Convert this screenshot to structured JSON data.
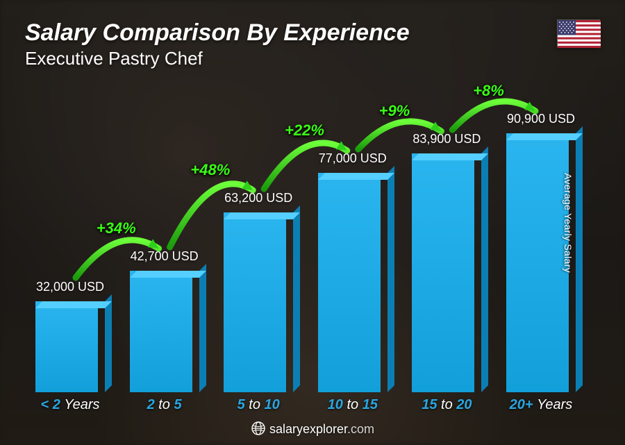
{
  "header": {
    "title": "Salary Comparison By Experience",
    "subtitle": "Executive Pastry Chef",
    "flag_country": "United States"
  },
  "yaxis_label": "Average Yearly Salary",
  "footer_site": "salaryexplorer",
  "footer_tld": ".com",
  "chart": {
    "type": "bar",
    "currency": "USD",
    "max_value": 95000,
    "bar_top_color": "#55cfff",
    "bar_front_top_color": "#2ab5ef",
    "bar_front_color": "#129fda",
    "bar_side_color": "#0b7fb4",
    "pct_text_color": "#39ff14",
    "arc_color": "#2fce1a",
    "background_colors": [
      "#353029",
      "#2a2622",
      "#322a20"
    ],
    "bars": [
      {
        "label_strong": "< 2",
        "label_rest": "Years",
        "value": 32000,
        "display": "32,000 USD"
      },
      {
        "label_strong": "2",
        "label_mid": "to",
        "label_strong2": "5",
        "value": 42700,
        "display": "42,700 USD",
        "pct": "+34%"
      },
      {
        "label_strong": "5",
        "label_mid": "to",
        "label_strong2": "10",
        "value": 63200,
        "display": "63,200 USD",
        "pct": "+48%"
      },
      {
        "label_strong": "10",
        "label_mid": "to",
        "label_strong2": "15",
        "value": 77000,
        "display": "77,000 USD",
        "pct": "+22%"
      },
      {
        "label_strong": "15",
        "label_mid": "to",
        "label_strong2": "20",
        "value": 83900,
        "display": "83,900 USD",
        "pct": "+9%"
      },
      {
        "label_strong": "20+",
        "label_rest": "Years",
        "value": 90900,
        "display": "90,900 USD",
        "pct": "+8%"
      }
    ]
  }
}
